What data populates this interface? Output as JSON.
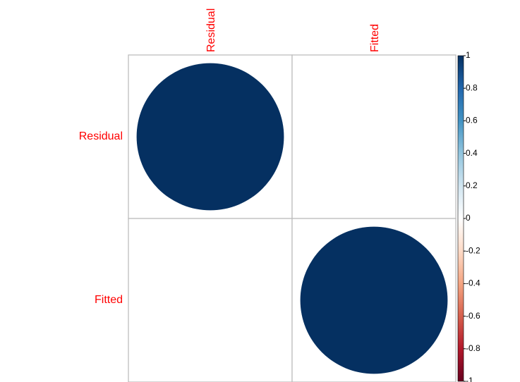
{
  "chart_data": {
    "type": "heatmap",
    "variables": [
      "Residual",
      "Fitted"
    ],
    "matrix": [
      [
        1,
        0
      ],
      [
        0,
        1
      ]
    ],
    "colorbar": {
      "min": -1,
      "max": 1,
      "ticks": [
        1,
        0.8,
        0.6,
        0.4,
        0.2,
        0,
        -0.2,
        -0.4,
        -0.6,
        -0.8,
        -1
      ],
      "tick_labels": [
        "1",
        "0.8",
        "0.6",
        "0.4",
        "0.2",
        "0",
        "-0.2",
        "-0.4",
        "-0.6",
        "-0.8",
        "-1"
      ],
      "colors": [
        "#67001f",
        "#b2182b",
        "#d6604d",
        "#f4a582",
        "#fddbc7",
        "#ffffff",
        "#d1e5f0",
        "#92c5de",
        "#4393c3",
        "#2166ac",
        "#053061"
      ]
    },
    "label_color": "#ff0000",
    "grid_color": "#bebebe"
  }
}
